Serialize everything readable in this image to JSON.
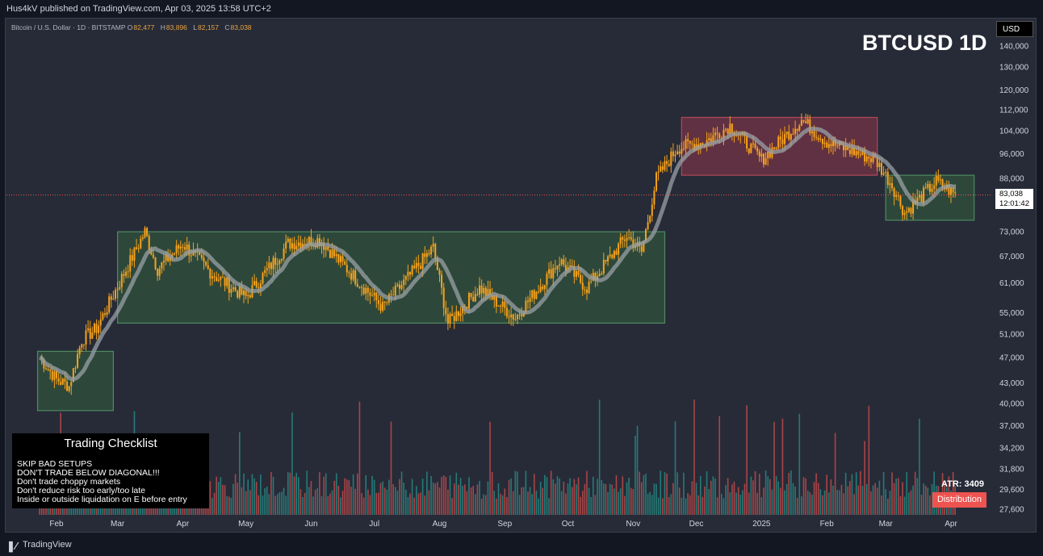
{
  "header": {
    "published": "Hus4kV published on TradingView.com, Apr 03, 2025 13:58 UTC+2"
  },
  "symbol": {
    "name": "Bitcoin / U.S. Dollar · 1D · BITSTAMP",
    "o_label": "O",
    "o_val": "82,477",
    "h_label": "H",
    "h_val": "83,896",
    "l_label": "L",
    "l_val": "82,157",
    "c_label": "C",
    "c_val": "83,038"
  },
  "title": "BTCUSD 1D",
  "currency": "USD",
  "price_label": {
    "price": "83,038",
    "countdown": "12:01:42"
  },
  "checklist": {
    "title": "Trading Checklist",
    "lines": [
      "SKIP BAD SETUPS",
      "DON'T TRADE BELOW DIAGONAL!!!",
      "Don't trade choppy markets",
      "Don't reduce risk too early/too late",
      "Inside or outside liquidation on E before entry"
    ]
  },
  "indicators": {
    "atr": "ATR: 3409",
    "phase": "Distribution"
  },
  "footer": {
    "brand": "TradingView"
  },
  "colors": {
    "background": "#272b38",
    "candle": "#f7a21b",
    "ma": "#9aa0a6",
    "green_zone": "#2f4d3c",
    "red_zone": "#6b3344",
    "volume_up": "#26a69a",
    "volume_down": "#ef5350"
  },
  "chart_data": {
    "type": "candlestick",
    "title": "BTCUSD 1D",
    "y_scale": "log",
    "ylim": [
      26500,
      146000
    ],
    "y_ticks": [
      "140,000",
      "130,000",
      "120,000",
      "112,000",
      "104,000",
      "96,000",
      "88,000",
      "73,000",
      "67,000",
      "61,000",
      "55,000",
      "51,000",
      "47,000",
      "43,000",
      "40,000",
      "37,000",
      "34,200",
      "31,800",
      "29,600",
      "27,600"
    ],
    "x_labels": [
      "Feb",
      "Mar",
      "Apr",
      "May",
      "Jun",
      "Jul",
      "Aug",
      "Sep",
      "Oct",
      "Nov",
      "Dec",
      "2025",
      "Feb",
      "Mar",
      "Apr"
    ],
    "close_path": [
      [
        "2024-01-24",
        47000
      ],
      [
        "2024-02-01",
        43500
      ],
      [
        "2024-02-07",
        42500
      ],
      [
        "2024-02-13",
        50000
      ],
      [
        "2024-02-20",
        52000
      ],
      [
        "2024-03-04",
        63000
      ],
      [
        "2024-03-14",
        73000
      ],
      [
        "2024-03-20",
        64000
      ],
      [
        "2024-04-01",
        70000
      ],
      [
        "2024-04-15",
        63000
      ],
      [
        "2024-05-01",
        58000
      ],
      [
        "2024-05-21",
        70000
      ],
      [
        "2024-06-05",
        71000
      ],
      [
        "2024-07-05",
        56000
      ],
      [
        "2024-07-29",
        69000
      ],
      [
        "2024-08-05",
        53000
      ],
      [
        "2024-08-20",
        60000
      ],
      [
        "2024-09-06",
        54000
      ],
      [
        "2024-09-27",
        66000
      ],
      [
        "2024-10-10",
        60000
      ],
      [
        "2024-10-29",
        72000
      ],
      [
        "2024-11-05",
        68000
      ],
      [
        "2024-11-12",
        88000
      ],
      [
        "2024-11-22",
        98000
      ],
      [
        "2024-12-05",
        100000
      ],
      [
        "2024-12-17",
        106000
      ],
      [
        "2025-01-01",
        94000
      ],
      [
        "2025-01-20",
        108000
      ],
      [
        "2025-02-01",
        100000
      ],
      [
        "2025-02-24",
        94000
      ],
      [
        "2025-03-04",
        86000
      ],
      [
        "2025-03-10",
        78000
      ],
      [
        "2025-03-25",
        87000
      ],
      [
        "2025-04-03",
        83038
      ]
    ],
    "zones": [
      {
        "color": "green",
        "x0": "2024-01-23",
        "x1": "2024-02-28",
        "y0": 39000,
        "y1": 48000
      },
      {
        "color": "green",
        "x0": "2024-03-01",
        "x1": "2024-11-16",
        "y0": 53000,
        "y1": 73000
      },
      {
        "color": "red",
        "x0": "2024-11-24",
        "x1": "2025-02-25",
        "y0": 89000,
        "y1": 109000
      },
      {
        "color": "green",
        "x0": "2025-03-01",
        "x1": "2025-04-12",
        "y0": 76000,
        "y1": 89000
      }
    ],
    "last_price": 83038
  }
}
